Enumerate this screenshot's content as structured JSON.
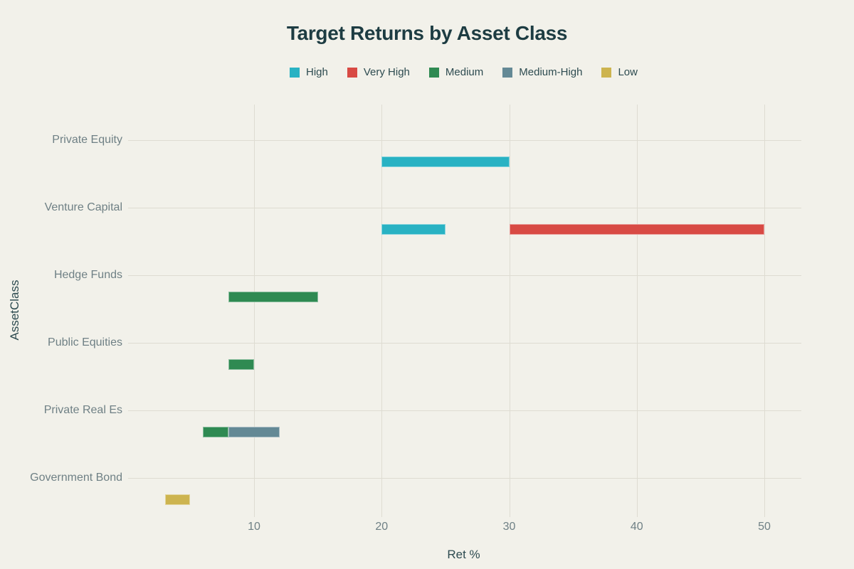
{
  "chart_data": {
    "type": "bar",
    "variant": "horizontal-range-gantt",
    "title": "Target Returns by Asset Class",
    "xlabel": "Ret %",
    "ylabel": "AssetClass",
    "xlim": [
      0,
      53
    ],
    "xticks": [
      10,
      20,
      30,
      40,
      50
    ],
    "grid": true,
    "legend_position": "top-center",
    "legend": [
      {
        "label": "High",
        "color": "#29b2c3"
      },
      {
        "label": "Very High",
        "color": "#d84a44"
      },
      {
        "label": "Medium",
        "color": "#2f8a52"
      },
      {
        "label": "Medium-High",
        "color": "#648995"
      },
      {
        "label": "Low",
        "color": "#cdb44f"
      }
    ],
    "categories": [
      "Private Equity",
      "Venture Capital",
      "Hedge Funds",
      "Public Equities",
      "Private Real Es",
      "Government Bond"
    ],
    "bars": [
      {
        "category": "Private Equity",
        "segments": [
          {
            "start": 20,
            "end": 30,
            "level": "High"
          }
        ]
      },
      {
        "category": "Venture Capital",
        "segments": [
          {
            "start": 20,
            "end": 25,
            "level": "High"
          },
          {
            "start": 30,
            "end": 50,
            "level": "Very High"
          }
        ]
      },
      {
        "category": "Hedge Funds",
        "segments": [
          {
            "start": 8,
            "end": 15,
            "level": "Medium"
          }
        ]
      },
      {
        "category": "Public Equities",
        "segments": [
          {
            "start": 8,
            "end": 10,
            "level": "Medium"
          }
        ]
      },
      {
        "category": "Private Real Es",
        "segments": [
          {
            "start": 6,
            "end": 8,
            "level": "Medium"
          },
          {
            "start": 8,
            "end": 12,
            "level": "Medium-High"
          }
        ]
      },
      {
        "category": "Government Bond",
        "segments": [
          {
            "start": 3,
            "end": 5,
            "level": "Low"
          }
        ]
      }
    ]
  }
}
